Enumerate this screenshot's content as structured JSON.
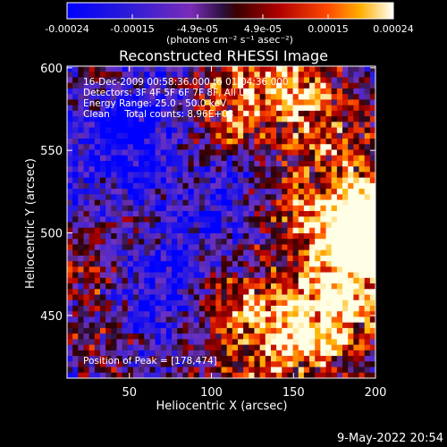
{
  "chart_data": {
    "type": "heatmap",
    "title": "Reconstructed RHESSI Image",
    "xlabel": "Heliocentric X (arcsec)",
    "ylabel": "Heliocentric Y (arcsec)",
    "xlim": [
      12,
      200
    ],
    "ylim": [
      412,
      601
    ],
    "xticks": [
      50,
      100,
      150,
      200
    ],
    "yticks": [
      450,
      500,
      550,
      600
    ],
    "colorbar": {
      "min": -0.00024,
      "max": 0.00024,
      "tick_labels": [
        "-0.00024",
        "-0.00015",
        "-4.9e-05",
        "4.9e-05",
        "0.00015",
        "0.00024"
      ],
      "unit_label": "(photons cm⁻² s⁻¹ asec⁻²)"
    },
    "annotations": [
      "16-Dec-2009 00:58:36.000 to 01:04:36.000",
      "Detectors: 3F 4F 5F 6F 7F 8F, All UIC",
      "Energy Range: 25.0 - 50.0 keV",
      "Clean     Total counts: 8.96E+03"
    ],
    "peak_label": "Position of Peak = [178,474]",
    "peak": [
      178,
      474
    ]
  },
  "footer": {
    "timestamp": "9-May-2022 20:54"
  }
}
